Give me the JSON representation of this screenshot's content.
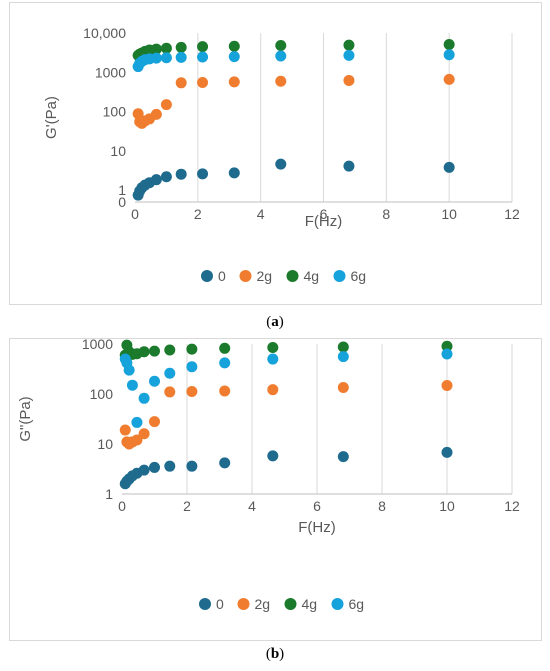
{
  "chart_data": [
    {
      "type": "scatter",
      "ylabel": "G'(Pa)",
      "xlabel": "F(Hz)",
      "yscale": "log",
      "xlim": [
        0,
        12
      ],
      "x_ticks": [
        "0",
        "2",
        "4",
        "6",
        "8",
        "10",
        "12"
      ],
      "y_ticks": [
        {
          "value": 1,
          "label": "1"
        },
        {
          "value": 10,
          "label": "10"
        },
        {
          "value": 100,
          "label": "100"
        },
        {
          "value": 1000,
          "label": "1000"
        },
        {
          "value": 10000,
          "label": "10,000"
        }
      ],
      "y_zero_label": "0",
      "grid": "vertical",
      "legend_position": "bottom",
      "series": [
        {
          "name": "0",
          "color": "#1f6b8e",
          "x": [
            0.1,
            0.15,
            0.22,
            0.32,
            0.46,
            0.68,
            1.0,
            1.47,
            2.15,
            3.16,
            4.64,
            6.81,
            10.0
          ],
          "y": [
            0.75,
            0.95,
            1.15,
            1.35,
            1.55,
            1.85,
            2.2,
            2.55,
            2.6,
            2.75,
            4.6,
            4.1,
            3.8
          ]
        },
        {
          "name": "2g",
          "color": "#f07d2f",
          "x": [
            0.1,
            0.15,
            0.22,
            0.32,
            0.46,
            0.68,
            1.0,
            1.47,
            2.15,
            3.16,
            4.64,
            6.81,
            10.0
          ],
          "y": [
            88,
            55,
            50,
            58,
            65,
            85,
            150,
            540,
            550,
            570,
            590,
            620,
            660
          ]
        },
        {
          "name": "4g",
          "color": "#1b7a2b",
          "x": [
            0.1,
            0.15,
            0.22,
            0.32,
            0.46,
            0.68,
            1.0,
            1.47,
            2.15,
            3.16,
            4.64,
            6.81,
            10.0
          ],
          "y": [
            2700,
            2900,
            3100,
            3400,
            3700,
            3900,
            4100,
            4300,
            4500,
            4600,
            4800,
            4900,
            5100
          ]
        },
        {
          "name": "6g",
          "color": "#16a2db",
          "x": [
            0.1,
            0.15,
            0.22,
            0.32,
            0.46,
            0.68,
            1.0,
            1.47,
            2.15,
            3.16,
            4.64,
            6.81,
            10.0
          ],
          "y": [
            1400,
            1700,
            1900,
            2100,
            2200,
            2300,
            2350,
            2400,
            2450,
            2500,
            2600,
            2700,
            2800
          ]
        }
      ],
      "caption": "(a)"
    },
    {
      "type": "scatter",
      "ylabel": "G\"(Pa)",
      "xlabel": "F(Hz)",
      "yscale": "log",
      "xlim": [
        0,
        12
      ],
      "x_ticks": [
        "0",
        "2",
        "4",
        "6",
        "8",
        "10",
        "12"
      ],
      "y_ticks": [
        {
          "value": 1,
          "label": "1"
        },
        {
          "value": 10,
          "label": "10"
        },
        {
          "value": 100,
          "label": "100"
        },
        {
          "value": 1000,
          "label": "1000"
        }
      ],
      "grid": "vertical",
      "legend_position": "bottom",
      "series": [
        {
          "name": "0",
          "color": "#1f6b8e",
          "x": [
            0.1,
            0.15,
            0.22,
            0.32,
            0.46,
            0.68,
            1.0,
            1.47,
            2.15,
            3.16,
            4.64,
            6.81,
            10.0
          ],
          "y": [
            1.6,
            1.8,
            2.0,
            2.3,
            2.6,
            3.0,
            3.4,
            3.6,
            3.6,
            4.2,
            5.8,
            5.6,
            6.8
          ]
        },
        {
          "name": "2g",
          "color": "#f07d2f",
          "x": [
            0.1,
            0.15,
            0.22,
            0.32,
            0.46,
            0.68,
            1.0,
            1.47,
            2.15,
            3.16,
            4.64,
            6.81,
            10.0
          ],
          "y": [
            19,
            11,
            10,
            11,
            12,
            16,
            28,
            110,
            112,
            115,
            122,
            135,
            148
          ]
        },
        {
          "name": "4g",
          "color": "#1b7a2b",
          "x": [
            0.1,
            0.15,
            0.22,
            0.32,
            0.46,
            0.68,
            1.0,
            1.47,
            2.15,
            3.16,
            4.64,
            6.81,
            10.0
          ],
          "y": [
            600,
            950,
            700,
            620,
            640,
            700,
            720,
            760,
            790,
            820,
            850,
            870,
            900
          ]
        },
        {
          "name": "6g",
          "color": "#16a2db",
          "x": [
            0.1,
            0.15,
            0.22,
            0.32,
            0.46,
            0.68,
            1.0,
            1.47,
            2.15,
            3.16,
            4.64,
            6.81,
            10.0
          ],
          "y": [
            500,
            420,
            300,
            150,
            27,
            82,
            180,
            260,
            350,
            420,
            500,
            560,
            630
          ]
        }
      ],
      "caption": "(b)"
    }
  ]
}
